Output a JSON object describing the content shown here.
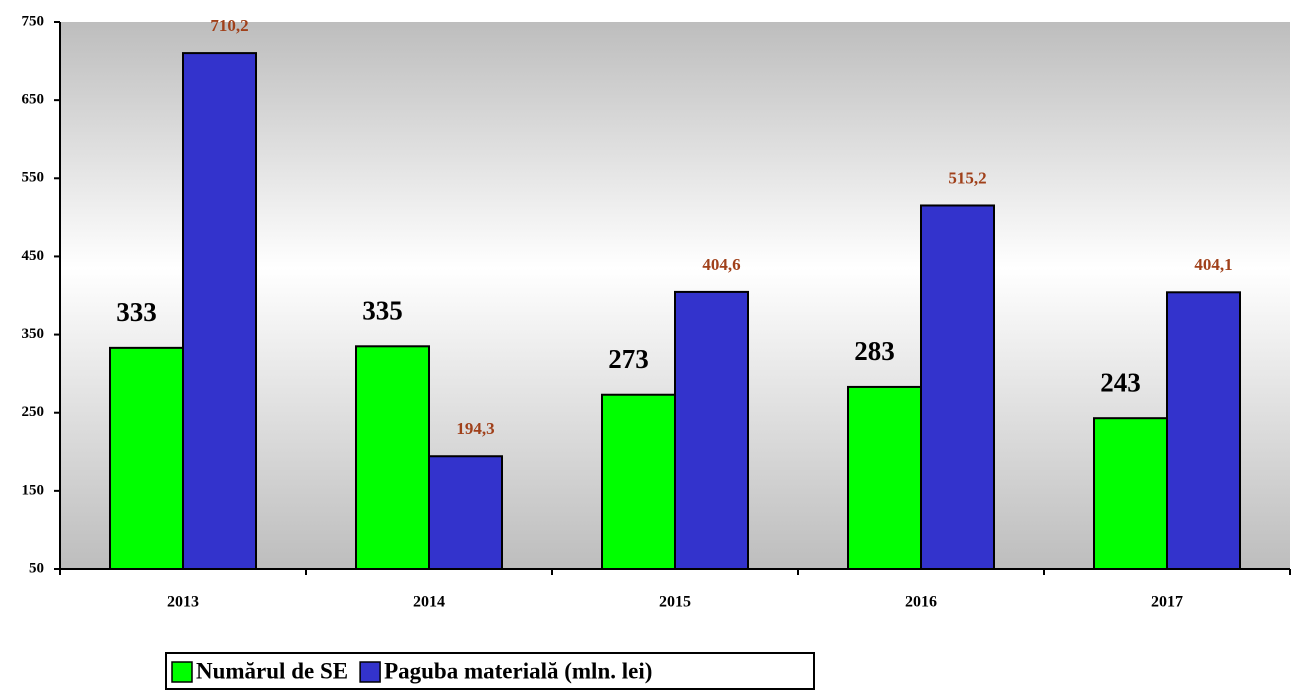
{
  "chart_data": {
    "type": "bar",
    "categories": [
      "2013",
      "2014",
      "2015",
      "2016",
      "2017"
    ],
    "series": [
      {
        "name": "Numărul de SE",
        "color": "#00ff00",
        "values": [
          333,
          335,
          273,
          283,
          243
        ]
      },
      {
        "name": "Paguba materială (mln. lei)",
        "color": "#3333cc",
        "values": [
          710.2,
          194.3,
          404.6,
          515.2,
          404.1
        ],
        "value_labels": [
          "710,2",
          "194,3",
          "404,6",
          "515,2",
          "404,1"
        ]
      }
    ],
    "ylim": [
      50,
      750
    ],
    "yticks": [
      50,
      150,
      250,
      350,
      450,
      550,
      650,
      750
    ],
    "legend": "bottom"
  }
}
